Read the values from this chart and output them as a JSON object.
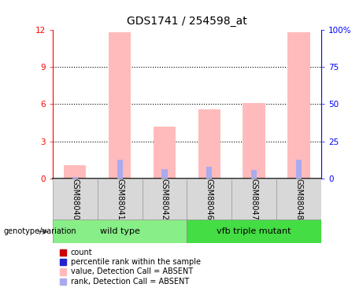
{
  "title": "GDS1741 / 254598_at",
  "samples": [
    "GSM88040",
    "GSM88041",
    "GSM88042",
    "GSM88046",
    "GSM88047",
    "GSM88048"
  ],
  "groups": [
    {
      "name": "wild type",
      "indices": [
        0,
        1,
        2
      ],
      "color": "#88ee88"
    },
    {
      "name": "vfb triple mutant",
      "indices": [
        3,
        4,
        5
      ],
      "color": "#44dd44"
    }
  ],
  "pink_bar_heights": [
    1.1,
    11.8,
    4.2,
    5.6,
    6.1,
    11.8
  ],
  "blue_bar_heights": [
    0.12,
    1.5,
    0.75,
    0.95,
    0.7,
    1.5
  ],
  "pink_color": "#ffbbbb",
  "blue_color": "#aaaaee",
  "red_color": "#cc0000",
  "blue_dark_color": "#2222cc",
  "ylim_left": [
    0,
    12
  ],
  "ylim_right": [
    0,
    100
  ],
  "yticks_left": [
    0,
    3,
    6,
    9,
    12
  ],
  "yticks_right": [
    0,
    25,
    50,
    75,
    100
  ],
  "ytick_labels_left": [
    "0",
    "3",
    "6",
    "9",
    "12"
  ],
  "ytick_labels_right": [
    "0",
    "25",
    "50",
    "75",
    "100%"
  ],
  "bar_width": 0.5,
  "background_color": "#ffffff",
  "group_label": "genotype/variation",
  "legend_items": [
    {
      "label": "count",
      "color": "#cc0000"
    },
    {
      "label": "percentile rank within the sample",
      "color": "#2222cc"
    },
    {
      "label": "value, Detection Call = ABSENT",
      "color": "#ffbbbb"
    },
    {
      "label": "rank, Detection Call = ABSENT",
      "color": "#aaaaee"
    }
  ]
}
